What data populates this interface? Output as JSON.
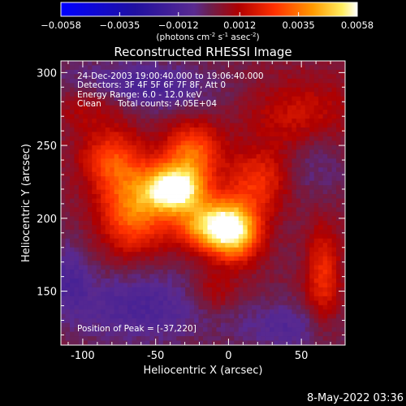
{
  "chart_data": {
    "type": "heatmap",
    "title": "Reconstructed RHESSI Image",
    "xlabel": "Heliocentric X (arcsec)",
    "ylabel": "Heliocentric Y (arcsec)",
    "xlim": [
      -115,
      80
    ],
    "ylim": [
      113,
      308
    ],
    "x_ticks": [
      -100,
      -50,
      0,
      50
    ],
    "y_ticks": [
      150,
      200,
      250,
      300
    ],
    "colorbar": {
      "range": [
        -0.0058,
        0.0058
      ],
      "ticks": [
        "-0.0058",
        "-0.0035",
        "-0.0012",
        "0.0012",
        "0.0035",
        "0.0058"
      ],
      "unit_label": "(photons cm",
      "unit_sup1": "-2",
      "unit_mid": " s",
      "unit_sup2": "-1",
      "unit_mid2": " asec",
      "unit_sup3": "-2",
      "unit_end": ")"
    },
    "annotations": {
      "time": "24-Dec-2003 19:00:40.000 to 19:06:40.000",
      "detectors": "Detectors: 3F 4F 5F 6F 7F 8F, Att 0",
      "energy": "Energy Range: 6.0 - 12.0 keV",
      "clean": "Clean",
      "counts": "Total counts: 4.05E+04",
      "peak": "Position of Peak = [-37,220]"
    },
    "peak": [
      -37,
      220
    ],
    "sources": [
      {
        "x": -37,
        "y": 220,
        "amp": 1.0,
        "sx": 14,
        "sy": 11
      },
      {
        "x": -12,
        "y": 195,
        "amp": 0.75,
        "sx": 16,
        "sy": 12
      },
      {
        "x": 5,
        "y": 190,
        "amp": 0.65,
        "sx": 12,
        "sy": 14
      },
      {
        "x": -65,
        "y": 205,
        "amp": 0.55,
        "sx": 16,
        "sy": 20
      },
      {
        "x": -25,
        "y": 245,
        "amp": 0.5,
        "sx": 14,
        "sy": 14
      },
      {
        "x": -80,
        "y": 240,
        "amp": 0.4,
        "sx": 15,
        "sy": 15
      },
      {
        "x": 20,
        "y": 225,
        "amp": 0.35,
        "sx": 15,
        "sy": 15
      },
      {
        "x": 65,
        "y": 160,
        "amp": 0.35,
        "sx": 8,
        "sy": 25
      },
      {
        "x": -95,
        "y": 280,
        "amp": 0.25,
        "sx": 20,
        "sy": 12
      },
      {
        "x": 50,
        "y": 270,
        "amp": 0.25,
        "sx": 25,
        "sy": 18
      },
      {
        "x": -10,
        "y": 150,
        "amp": 0.2,
        "sx": 12,
        "sy": 10
      },
      {
        "x": -60,
        "y": 140,
        "amp": -0.25,
        "sx": 35,
        "sy": 18
      },
      {
        "x": -70,
        "y": 290,
        "amp": -0.3,
        "sx": 40,
        "sy": 12
      },
      {
        "x": 40,
        "y": 125,
        "amp": -0.2,
        "sx": 25,
        "sy": 12
      },
      {
        "x": 60,
        "y": 240,
        "amp": -0.15,
        "sx": 15,
        "sy": 20
      },
      {
        "x": -110,
        "y": 160,
        "amp": -0.2,
        "sx": 10,
        "sy": 18
      }
    ]
  },
  "footer": {
    "timestamp": "8-May-2022 03:36"
  }
}
